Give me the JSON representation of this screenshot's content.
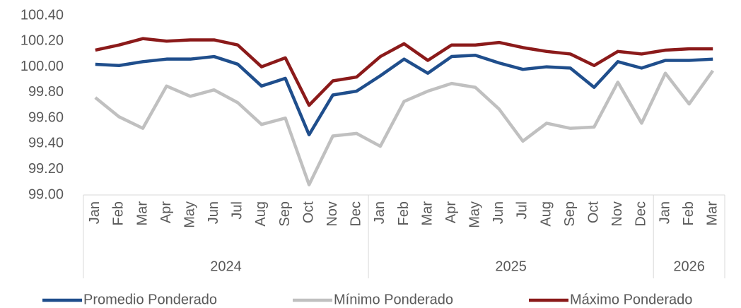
{
  "chart_data": {
    "type": "line",
    "categories": [
      "Jan",
      "Feb",
      "Mar",
      "Apr",
      "May",
      "Jun",
      "Jul",
      "Aug",
      "Sep",
      "Oct",
      "Nov",
      "Dec",
      "Jan",
      "Feb",
      "Mar",
      "Apr",
      "May",
      "Jun",
      "Jul",
      "Aug",
      "Sep",
      "Oct",
      "Nov",
      "Dec",
      "Jan",
      "Feb",
      "Mar"
    ],
    "groups": [
      {
        "name": "2024",
        "count": 12
      },
      {
        "name": "2025",
        "count": 12
      },
      {
        "name": "2026",
        "count": 3
      }
    ],
    "series": [
      {
        "name": "Promedio Ponderado",
        "color": "#1f4e8c",
        "values": [
          100.02,
          100.01,
          100.04,
          100.06,
          100.06,
          100.08,
          100.02,
          99.85,
          99.91,
          99.47,
          99.78,
          99.81,
          99.93,
          100.06,
          99.95,
          100.08,
          100.09,
          100.03,
          99.98,
          100.0,
          99.99,
          99.84,
          100.04,
          99.99,
          100.05,
          100.05,
          100.06
        ]
      },
      {
        "name": "Mínimo Ponderado",
        "color": "#c0c0c0",
        "values": [
          99.76,
          99.61,
          99.52,
          99.85,
          99.77,
          99.82,
          99.72,
          99.55,
          99.6,
          99.08,
          99.46,
          99.48,
          99.38,
          99.73,
          99.81,
          99.87,
          99.84,
          99.67,
          99.42,
          99.56,
          99.52,
          99.53,
          99.88,
          99.56,
          99.95,
          99.71,
          99.97
        ]
      },
      {
        "name": "Máximo Ponderado",
        "color": "#8b1a1a",
        "values": [
          100.13,
          100.17,
          100.22,
          100.2,
          100.21,
          100.21,
          100.17,
          100.0,
          100.07,
          99.7,
          99.89,
          99.92,
          100.08,
          100.18,
          100.05,
          100.17,
          100.17,
          100.19,
          100.15,
          100.12,
          100.1,
          100.01,
          100.12,
          100.1,
          100.13,
          100.14,
          100.14
        ]
      }
    ],
    "ylim": [
      99.0,
      100.4
    ],
    "yticks": [
      {
        "value": 99.0,
        "label": "99.00"
      },
      {
        "value": 99.2,
        "label": "99.20"
      },
      {
        "value": 99.4,
        "label": "99.40"
      },
      {
        "value": 99.6,
        "label": "99.60"
      },
      {
        "value": 99.8,
        "label": "99.80"
      },
      {
        "value": 100.0,
        "label": "100.00"
      },
      {
        "value": 100.2,
        "label": "100.20"
      },
      {
        "value": 100.4,
        "label": "100.40"
      }
    ],
    "grid": false,
    "legend": "bottom"
  }
}
